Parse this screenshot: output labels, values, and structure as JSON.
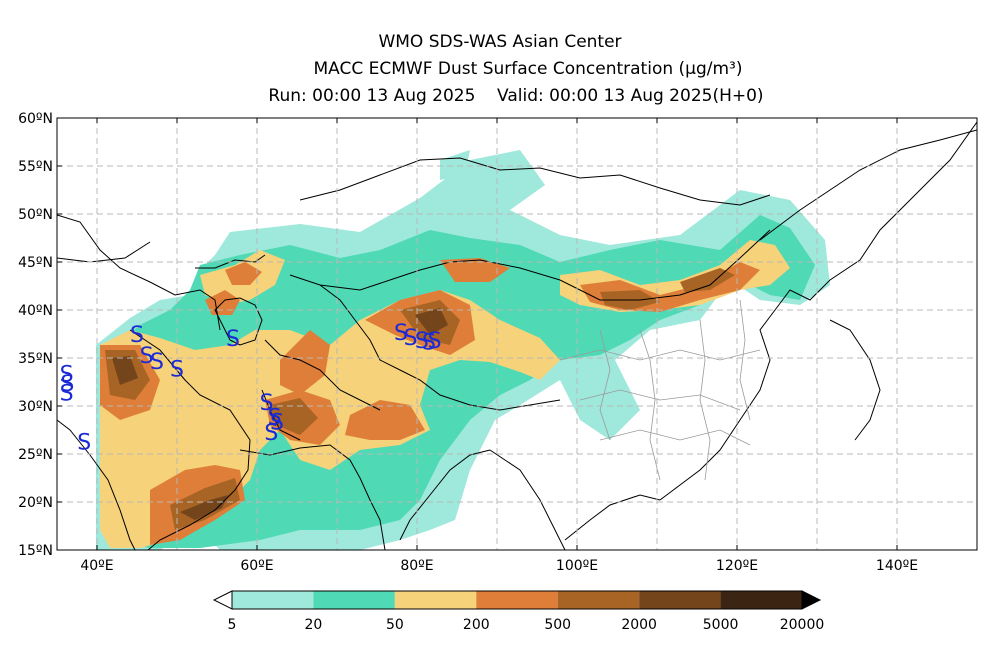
{
  "title": {
    "line1": "WMO SDS-WAS Asian Center",
    "line2": "MACC ECMWF Dust Surface Concentration (µg/m³)",
    "line3": "Run: 00:00 13 Aug 2025    Valid: 00:00 13 Aug 2025(H+0)"
  },
  "axes": {
    "lat_labels": [
      "60ºN",
      "55ºN",
      "50ºN",
      "45ºN",
      "40ºN",
      "35ºN",
      "30ºN",
      "25ºN",
      "20ºN",
      "15ºN"
    ],
    "lon_labels": [
      "40ºE",
      "60ºE",
      "80ºE",
      "100ºE",
      "120ºE",
      "140ºE"
    ],
    "lat_range": [
      15,
      60
    ],
    "lon_range": [
      35,
      150
    ],
    "grid": true
  },
  "colorbar": {
    "labels": [
      "5",
      "20",
      "50",
      "200",
      "500",
      "2000",
      "5000",
      "20000"
    ],
    "colors": [
      "#9fe8dc",
      "#4fd9b5",
      "#f6d27a",
      "#de7e38",
      "#a86424",
      "#74441b",
      "#3b2412"
    ]
  },
  "markers": {
    "symbol": "S",
    "color": "#1a2bd6",
    "points": [
      [
        45.0,
        37.6
      ],
      [
        46.2,
        35.4
      ],
      [
        47.5,
        34.8
      ],
      [
        50.0,
        34.0
      ],
      [
        57.0,
        37.2
      ],
      [
        36.2,
        33.5
      ],
      [
        36.3,
        32.5
      ],
      [
        36.2,
        31.5
      ],
      [
        38.4,
        26.4
      ],
      [
        61.2,
        30.5
      ],
      [
        62.2,
        29.0
      ],
      [
        61.8,
        27.4
      ],
      [
        62.5,
        28.5
      ],
      [
        78.0,
        37.8
      ],
      [
        79.2,
        37.3
      ],
      [
        80.6,
        37.0
      ],
      [
        81.5,
        36.8
      ],
      [
        82.2,
        37.0
      ]
    ]
  }
}
